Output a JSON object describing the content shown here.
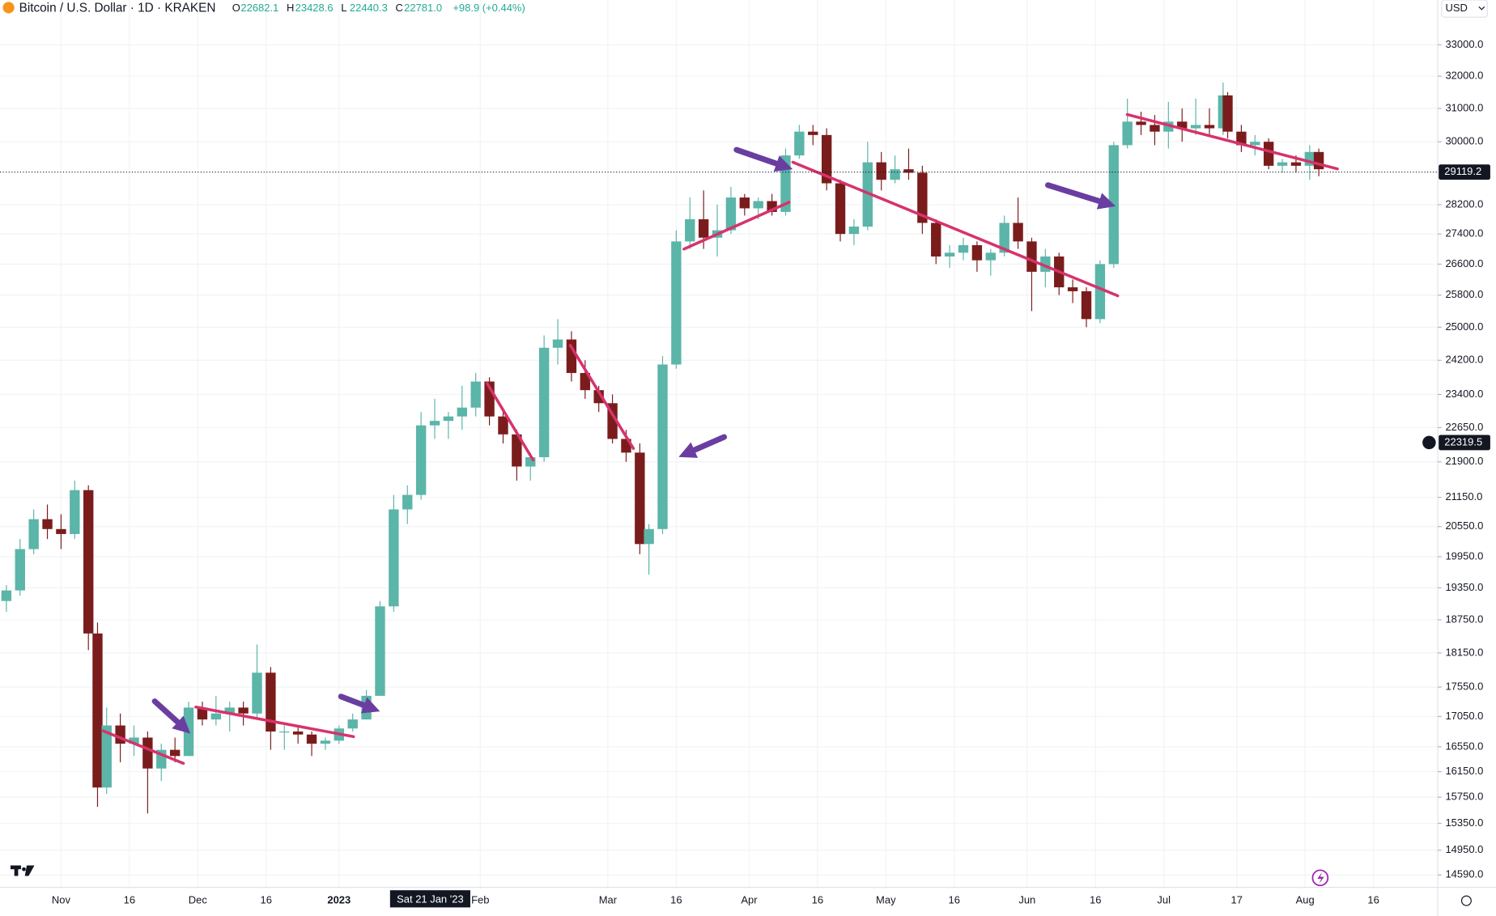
{
  "header": {
    "title": "Bitcoin / U.S. Dollar · 1D · KRAKEN",
    "ohlc": [
      {
        "key": "O",
        "value": "22682.1"
      },
      {
        "key": "H",
        "value": "23428.6"
      },
      {
        "key": "L",
        "value": "22440.3"
      },
      {
        "key": "C",
        "value": "22781.0"
      }
    ],
    "change": "+98.9 (+0.44%)",
    "currency": "USD"
  },
  "chart_data": {
    "type": "candlestick",
    "log_scale": true,
    "grid": true,
    "up_color": "#5bb5a8",
    "down_color": "#7b1c1c",
    "x": [
      -12,
      -9,
      -6,
      -3,
      0,
      3,
      6,
      8,
      10,
      13,
      16,
      19,
      22,
      25,
      28,
      31,
      34,
      37,
      40,
      43,
      46,
      49,
      52,
      55,
      58,
      61,
      64,
      67,
      70,
      73,
      76,
      79,
      82,
      85,
      88,
      91,
      94,
      97,
      100,
      103,
      106,
      109,
      112,
      115,
      118,
      121,
      124,
      127,
      129,
      132,
      135,
      138,
      141,
      144,
      147,
      150,
      153,
      156,
      159,
      162,
      165,
      168,
      171,
      174,
      177,
      180,
      183,
      186,
      189,
      192,
      195,
      198,
      201,
      204,
      207,
      210,
      213,
      216,
      219,
      222,
      225,
      228,
      231,
      234,
      237,
      240,
      243,
      246,
      249,
      252,
      255,
      256,
      259,
      262,
      265,
      268,
      271,
      274,
      276
    ],
    "open": [
      19100,
      19300,
      20100,
      20700,
      20500,
      20400,
      21300,
      18500,
      15900,
      16900,
      16600,
      16700,
      16200,
      16500,
      16400,
      17200,
      17000,
      17100,
      17200,
      17100,
      17800,
      16800,
      16800,
      16750,
      16600,
      16650,
      16850,
      17000,
      17400,
      19000,
      20900,
      21200,
      22700,
      22800,
      22900,
      23100,
      23700,
      22900,
      22500,
      21800,
      22000,
      24500,
      24700,
      23900,
      23500,
      23200,
      22400,
      22100,
      20200,
      20500,
      24100,
      27200,
      27800,
      27300,
      27500,
      28400,
      28100,
      28300,
      28000,
      29600,
      30300,
      30200,
      28800,
      27400,
      27600,
      29400,
      28900,
      29200,
      29100,
      27700,
      26800,
      26900,
      27100,
      26700,
      26900,
      27700,
      27200,
      26400,
      26800,
      26000,
      25900,
      25200,
      26600,
      29900,
      30600,
      30500,
      30300,
      30600,
      30400,
      30500,
      30400,
      31400,
      30300,
      29900,
      30000,
      29300,
      29400,
      29300,
      29700
    ],
    "high": [
      19400,
      20300,
      20900,
      21000,
      20800,
      21500,
      21400,
      18700,
      17200,
      17100,
      16900,
      16800,
      16600,
      16700,
      17300,
      17300,
      17400,
      17300,
      17300,
      18300,
      17900,
      16900,
      16900,
      16800,
      16700,
      16900,
      17100,
      17500,
      19100,
      21200,
      21400,
      23000,
      23300,
      23000,
      23600,
      23900,
      23800,
      23000,
      22600,
      22100,
      24800,
      25200,
      24900,
      24200,
      23600,
      23400,
      22600,
      22300,
      20600,
      24300,
      27500,
      28400,
      28600,
      28200,
      28700,
      28500,
      28400,
      28500,
      29800,
      30500,
      30500,
      30400,
      28900,
      27800,
      30000,
      29700,
      29600,
      29800,
      29300,
      27800,
      27100,
      27300,
      27200,
      27000,
      27900,
      28400,
      27300,
      27000,
      26900,
      26200,
      26000,
      26700,
      30000,
      31300,
      30900,
      30800,
      31200,
      31000,
      31300,
      31000,
      31800,
      31500,
      30500,
      30200,
      30100,
      29500,
      29600,
      29900,
      29800
    ],
    "low": [
      18900,
      19200,
      20000,
      20300,
      20100,
      20300,
      18200,
      15600,
      15800,
      16300,
      16400,
      15500,
      16000,
      16300,
      16400,
      16900,
      16900,
      16800,
      16900,
      17000,
      16500,
      16500,
      16600,
      16400,
      16500,
      16600,
      16800,
      17000,
      17400,
      18900,
      20600,
      21100,
      22400,
      22400,
      22600,
      22900,
      22700,
      22300,
      21500,
      21500,
      21900,
      24100,
      23700,
      23300,
      23000,
      22300,
      21900,
      20000,
      19600,
      20400,
      24000,
      27000,
      27000,
      26800,
      27400,
      27900,
      27800,
      27900,
      27900,
      29500,
      29900,
      28600,
      27200,
      27100,
      27500,
      28600,
      28800,
      28900,
      27400,
      26600,
      26500,
      26700,
      26400,
      26300,
      26800,
      27000,
      25400,
      26000,
      25800,
      25600,
      25000,
      25100,
      26500,
      29800,
      30200,
      29900,
      29800,
      30000,
      30200,
      30200,
      30200,
      30100,
      29700,
      29600,
      29200,
      29100,
      29100,
      28900,
      29000
    ],
    "close": [
      19300,
      20100,
      20700,
      20500,
      20400,
      21300,
      18500,
      15900,
      16900,
      16600,
      16700,
      16200,
      16500,
      16400,
      17200,
      17000,
      17100,
      17200,
      17100,
      17800,
      16800,
      16800,
      16750,
      16600,
      16650,
      16850,
      17000,
      17400,
      19000,
      20900,
      21200,
      22700,
      22800,
      22900,
      23100,
      23700,
      22900,
      22500,
      21800,
      22000,
      24500,
      24700,
      23900,
      23500,
      23200,
      22400,
      22100,
      20200,
      20500,
      24100,
      27200,
      27800,
      27300,
      27500,
      28400,
      28100,
      28300,
      28000,
      29600,
      30300,
      30200,
      28800,
      27400,
      27600,
      29400,
      28900,
      29200,
      29100,
      27700,
      26800,
      26900,
      27100,
      26700,
      26900,
      27700,
      27200,
      26400,
      26800,
      26000,
      25900,
      25200,
      26600,
      29900,
      30600,
      30500,
      30300,
      30600,
      30400,
      30500,
      30400,
      31400,
      30300,
      29900,
      30000,
      29300,
      29400,
      29300,
      29700,
      29200
    ],
    "xlim": [
      -13.4,
      302.1
    ],
    "ylim": [
      14413,
      34487
    ],
    "xticks": [
      {
        "value": 0,
        "label": "Nov"
      },
      {
        "value": 15,
        "label": "16"
      },
      {
        "value": 30,
        "label": "Dec"
      },
      {
        "value": 45,
        "label": "16"
      },
      {
        "value": 61,
        "label": "2023"
      },
      {
        "value": 92,
        "label": "Feb"
      },
      {
        "value": 120,
        "label": "Mar"
      },
      {
        "value": 135,
        "label": "16"
      },
      {
        "value": 151,
        "label": "Apr"
      },
      {
        "value": 166,
        "label": "16"
      },
      {
        "value": 181,
        "label": "May"
      },
      {
        "value": 196,
        "label": "16"
      },
      {
        "value": 212,
        "label": "Jun"
      },
      {
        "value": 227,
        "label": "16"
      },
      {
        "value": 242,
        "label": "Jul"
      },
      {
        "value": 258,
        "label": "17"
      },
      {
        "value": 273,
        "label": "Aug"
      },
      {
        "value": 288,
        "label": "16"
      }
    ],
    "yticks": [
      {
        "value": 33000,
        "label": "33000.0"
      },
      {
        "value": 32000,
        "label": "32000.0"
      },
      {
        "value": 31000,
        "label": "31000.0"
      },
      {
        "value": 30000,
        "label": "30000.0"
      },
      {
        "value": 28200,
        "label": "28200.0"
      },
      {
        "value": 27400,
        "label": "27400.0"
      },
      {
        "value": 26600,
        "label": "26600.0"
      },
      {
        "value": 25800,
        "label": "25800.0"
      },
      {
        "value": 25000,
        "label": "25000.0"
      },
      {
        "value": 24200,
        "label": "24200.0"
      },
      {
        "value": 23400,
        "label": "23400.0"
      },
      {
        "value": 22650,
        "label": "22650.0"
      },
      {
        "value": 21900,
        "label": "21900.0"
      },
      {
        "value": 21150,
        "label": "21150.0"
      },
      {
        "value": 20550,
        "label": "20550.0"
      },
      {
        "value": 19950,
        "label": "19950.0"
      },
      {
        "value": 19350,
        "label": "19350.0"
      },
      {
        "value": 18750,
        "label": "18750.0"
      },
      {
        "value": 18150,
        "label": "18150.0"
      },
      {
        "value": 17550,
        "label": "17550.0"
      },
      {
        "value": 17050,
        "label": "17050.0"
      },
      {
        "value": 16550,
        "label": "16550.0"
      },
      {
        "value": 16150,
        "label": "16150.0"
      },
      {
        "value": 15750,
        "label": "15750.0"
      },
      {
        "value": 15350,
        "label": "15350.0"
      },
      {
        "value": 14950,
        "label": "14950.0"
      },
      {
        "value": 14590,
        "label": "14590.0"
      }
    ],
    "last_price": 29119.2,
    "crosshair": {
      "x": 81,
      "x_label": "Sat 21 Jan '23",
      "price": 22319.5
    }
  }
}
